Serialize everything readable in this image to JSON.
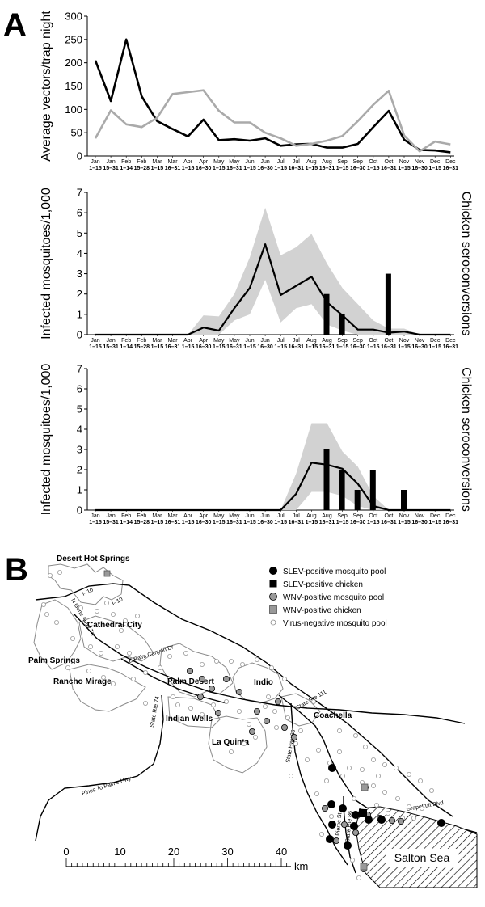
{
  "panels": {
    "a": "A",
    "b": "B"
  },
  "x_categories": [
    "Jan 1–15",
    "Jan 15–31",
    "Feb 1–14",
    "Feb 15–28",
    "Mar 1–15",
    "Mar 16–31",
    "Apr 1–15",
    "Apr 16–30",
    "May 1–15",
    "May 16–31",
    "Jun 1–15",
    "Jun 16–30",
    "Jul 1–15",
    "Jul 16–31",
    "Aug 1–15",
    "Aug 16–31",
    "Sep 1–15",
    "Sep 16–30",
    "Oct 1–15",
    "Oct 16–31",
    "Nov 1–15",
    "Nov 16–30",
    "Dec 1–15",
    "Dec 16–31"
  ],
  "x_tick_labels": [
    [
      "Jan",
      "1–15"
    ],
    [
      "Jan",
      "15–31"
    ],
    [
      "Feb",
      "1–14"
    ],
    [
      "Feb",
      "15–28"
    ],
    [
      "Mar",
      "1–15"
    ],
    [
      "Mar",
      "16–31"
    ],
    [
      "Apr",
      "1–15"
    ],
    [
      "Apr",
      "16–30"
    ],
    [
      "May",
      "1–15"
    ],
    [
      "May",
      "16–31"
    ],
    [
      "Jun",
      "1–15"
    ],
    [
      "Jun",
      "16–30"
    ],
    [
      "Jul",
      "1–15"
    ],
    [
      "Jul",
      "16–31"
    ],
    [
      "Aug",
      "1–15"
    ],
    [
      "Aug",
      "16–31"
    ],
    [
      "Sep",
      "1–15"
    ],
    [
      "Sep",
      "16–30"
    ],
    [
      "Oct",
      "1–15"
    ],
    [
      "Oct",
      "16–31"
    ],
    [
      "Nov",
      "1–15"
    ],
    [
      "Nov",
      "16–30"
    ],
    [
      "Dec",
      "1–15"
    ],
    [
      "Dec",
      "16–31"
    ]
  ],
  "chart_data": [
    {
      "type": "line",
      "ylabel": "Average vectors/trap night",
      "ylim": [
        0,
        300
      ],
      "yticks": [
        0,
        50,
        100,
        150,
        200,
        250,
        300
      ],
      "series": [
        {
          "color": "#000000",
          "values": [
            205,
            118,
            250,
            128,
            75,
            58,
            42,
            78,
            34,
            36,
            33,
            38,
            22,
            25,
            26,
            18,
            18,
            26,
            62,
            97,
            35,
            13,
            12,
            8
          ]
        },
        {
          "color": "#aaaaaa",
          "values": [
            38,
            98,
            68,
            62,
            82,
            133,
            137,
            141,
            97,
            72,
            72,
            50,
            38,
            22,
            26,
            33,
            43,
            75,
            110,
            140,
            44,
            10,
            31,
            25
          ]
        }
      ]
    },
    {
      "type": "line",
      "ylabel": "Infected mosquitoes/1,000",
      "y2label": "Chicken seroconversions",
      "ylim": [
        0,
        7
      ],
      "yticks": [
        0,
        1,
        2,
        3,
        4,
        5,
        6,
        7
      ],
      "line": [
        0,
        0,
        0,
        0,
        0,
        0,
        0,
        0.35,
        0.2,
        1.3,
        2.3,
        4.45,
        1.95,
        2.4,
        2.85,
        1.6,
        0.95,
        0.25,
        0.25,
        0.1,
        0.15,
        0,
        0,
        0
      ],
      "band_upper": [
        0,
        0,
        0,
        0,
        0,
        0,
        0,
        0.95,
        0.9,
        2.0,
        3.8,
        6.25,
        3.9,
        4.3,
        4.95,
        3.5,
        2.3,
        1.5,
        0.7,
        0.3,
        0.3,
        0,
        0,
        0
      ],
      "band_lower": [
        0,
        0,
        0,
        0,
        0,
        0,
        0,
        0,
        0,
        0.7,
        1.0,
        2.7,
        0.6,
        1.3,
        1.5,
        0.5,
        0.2,
        0,
        0,
        0,
        0,
        0,
        0,
        0
      ],
      "bars": [
        {
          "x": 15,
          "value": 2
        },
        {
          "x": 16,
          "value": 1
        },
        {
          "x": 19,
          "value": 3
        }
      ]
    },
    {
      "type": "line",
      "ylabel": "Infected mosquitoes/1,000",
      "y2label": "Chicken seroconversions",
      "ylim": [
        0,
        7
      ],
      "yticks": [
        0,
        1,
        2,
        3,
        4,
        5,
        6,
        7
      ],
      "line": [
        0,
        0,
        0,
        0,
        0,
        0,
        0,
        0,
        0,
        0,
        0,
        0,
        0,
        0.8,
        2.35,
        2.25,
        2.05,
        1.3,
        0.2,
        0,
        0,
        0,
        0,
        0
      ],
      "band_upper": [
        0,
        0,
        0,
        0,
        0,
        0,
        0,
        0,
        0,
        0,
        0,
        0,
        0,
        1.8,
        4.3,
        4.3,
        2.9,
        2.15,
        0.7,
        0,
        0,
        0,
        0,
        0
      ],
      "band_lower": [
        0,
        0,
        0,
        0,
        0,
        0,
        0,
        0,
        0,
        0,
        0,
        0,
        0,
        0,
        0.9,
        0.9,
        0.7,
        0.2,
        0,
        0,
        0,
        0,
        0,
        0
      ],
      "bars": [
        {
          "x": 15,
          "value": 3
        },
        {
          "x": 16,
          "value": 2
        },
        {
          "x": 17,
          "value": 1
        },
        {
          "x": 18,
          "value": 2
        },
        {
          "x": 20,
          "value": 1
        }
      ]
    }
  ],
  "map": {
    "towns": [
      "Desert Hot Springs",
      "Cathedral City",
      "Palm Springs",
      "Rancho Mirage",
      "Palm Desert",
      "Indio",
      "Indian Wells",
      "Coachella",
      "La Quinta"
    ],
    "roads": [
      "I- 10",
      "I- 10",
      "N Gene Autry Trl",
      "E Palm Canyon Dr",
      "State Rte 74",
      "State Rte 111",
      "State Hwy 86",
      "Pierce St",
      "State Rte 86",
      "Grapefruit Blvd",
      "Pines To Palms Hwy"
    ],
    "water": "Salton Sea",
    "legend": [
      {
        "label": "SLEV-positive mosquito pool",
        "symbol": "circle",
        "fill": "#000000"
      },
      {
        "label": "SLEV-positive chicken",
        "symbol": "square",
        "fill": "#000000"
      },
      {
        "label": "WNV-positive mosquito pool",
        "symbol": "circle",
        "fill": "#999999"
      },
      {
        "label": "WNV-positive chicken",
        "symbol": "square",
        "fill": "#999999"
      },
      {
        "label": "Virus-negative mosquito pool",
        "symbol": "circle",
        "fill": "#ffffff"
      }
    ],
    "scale": {
      "ticks": [
        0,
        10,
        20,
        30,
        40
      ],
      "unit": "km"
    }
  }
}
